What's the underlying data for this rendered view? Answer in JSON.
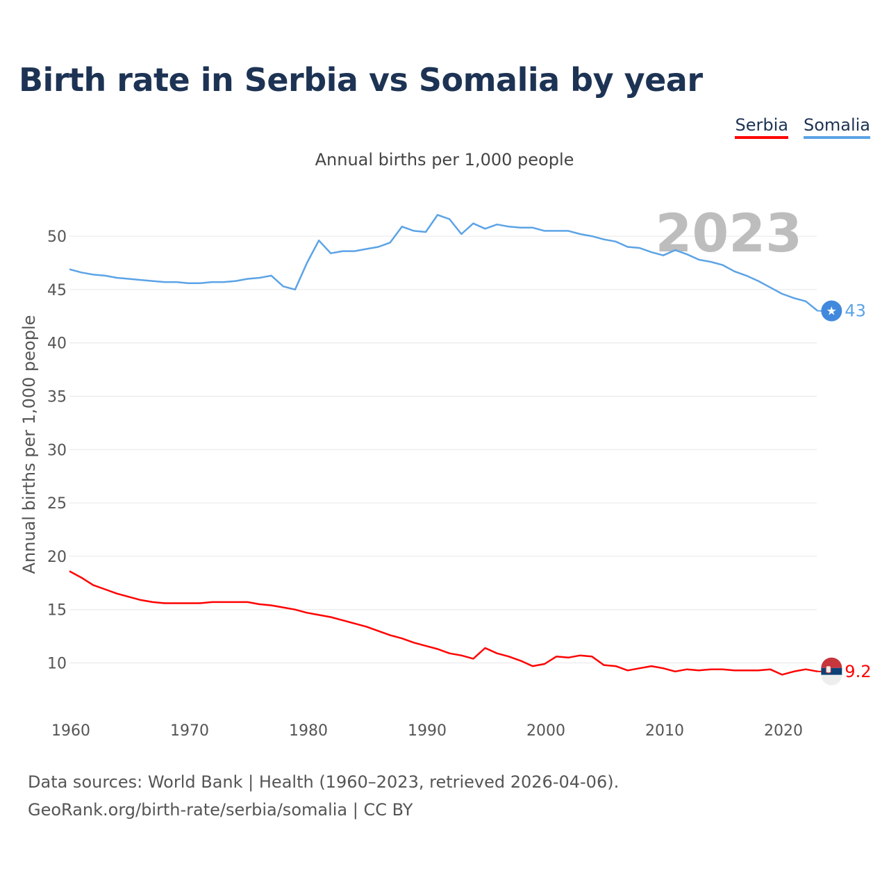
{
  "header": {
    "title": "Birth rate in Serbia vs Somalia by year",
    "subtitle": "Annual births per 1,000 people"
  },
  "legend": {
    "serbia": "Serbia",
    "somalia": "Somalia"
  },
  "footer": {
    "line1": "Data sources: World Bank | Health (1960–2023, retrieved 2026-04-06).",
    "line2": "GeoRank.org/birth-rate/serbia/somalia | CC BY"
  },
  "chart_data": {
    "type": "line",
    "title": "Birth rate in Serbia vs Somalia by year",
    "subtitle": "Annual births per 1,000 people",
    "xlabel": "",
    "ylabel": "Annual births per 1,000 people",
    "current_year": "2023",
    "xlim": [
      1960,
      2024
    ],
    "ylim": [
      7,
      53
    ],
    "x_ticks": [
      "1960",
      "1970",
      "1980",
      "1990",
      "2000",
      "2010",
      "2020"
    ],
    "y_ticks": [
      "10",
      "15",
      "20",
      "25",
      "30",
      "35",
      "40",
      "45",
      "50"
    ],
    "grid": true,
    "legend_position": "top-right",
    "x": [
      1960,
      1961,
      1962,
      1963,
      1964,
      1965,
      1966,
      1967,
      1968,
      1969,
      1970,
      1971,
      1972,
      1973,
      1974,
      1975,
      1976,
      1977,
      1978,
      1979,
      1980,
      1981,
      1982,
      1983,
      1984,
      1985,
      1986,
      1987,
      1988,
      1989,
      1990,
      1991,
      1992,
      1993,
      1994,
      1995,
      1996,
      1997,
      1998,
      1999,
      2000,
      2001,
      2002,
      2003,
      2004,
      2005,
      2006,
      2007,
      2008,
      2009,
      2010,
      2011,
      2012,
      2013,
      2014,
      2015,
      2016,
      2017,
      2018,
      2019,
      2020,
      2021,
      2022,
      2023
    ],
    "series": [
      {
        "name": "Serbia",
        "color": "#ff0000",
        "end_label": "9.2",
        "values": [
          18.6,
          18.0,
          17.3,
          16.9,
          16.5,
          16.2,
          15.9,
          15.7,
          15.6,
          15.6,
          15.6,
          15.6,
          15.7,
          15.7,
          15.7,
          15.7,
          15.5,
          15.4,
          15.2,
          15.0,
          14.7,
          14.5,
          14.3,
          14.0,
          13.7,
          13.4,
          13.0,
          12.6,
          12.3,
          11.9,
          11.6,
          11.3,
          10.9,
          10.7,
          10.4,
          11.4,
          10.9,
          10.6,
          10.2,
          9.7,
          9.9,
          10.6,
          10.5,
          10.7,
          10.6,
          9.8,
          9.7,
          9.3,
          9.5,
          9.7,
          9.5,
          9.2,
          9.4,
          9.3,
          9.4,
          9.4,
          9.3,
          9.3,
          9.3,
          9.4,
          8.9,
          9.2,
          9.4,
          9.2
        ]
      },
      {
        "name": "Somalia",
        "color": "#5ba3e6",
        "end_label": "43",
        "values": [
          46.9,
          46.6,
          46.4,
          46.3,
          46.1,
          46.0,
          45.9,
          45.8,
          45.7,
          45.7,
          45.6,
          45.6,
          45.7,
          45.7,
          45.8,
          46.0,
          46.1,
          46.3,
          45.3,
          45.0,
          47.5,
          49.6,
          48.4,
          48.6,
          48.6,
          48.8,
          49.0,
          49.4,
          50.9,
          50.5,
          50.4,
          52.0,
          51.6,
          50.2,
          51.2,
          50.7,
          51.1,
          50.9,
          50.8,
          50.8,
          50.5,
          50.5,
          50.5,
          50.2,
          50.0,
          49.7,
          49.5,
          49.0,
          48.9,
          48.5,
          48.2,
          48.7,
          48.3,
          47.8,
          47.6,
          47.3,
          46.7,
          46.3,
          45.8,
          45.2,
          44.6,
          44.2,
          43.9,
          43.0
        ]
      }
    ]
  }
}
